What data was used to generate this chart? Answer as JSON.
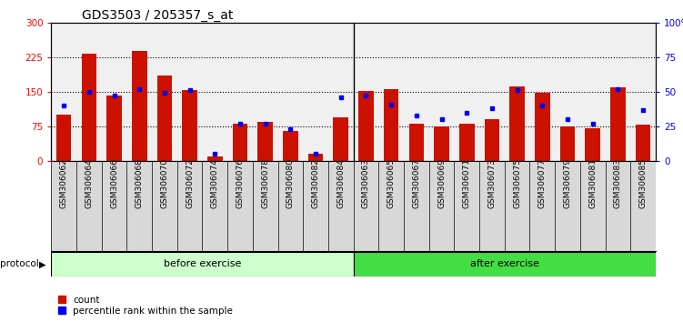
{
  "title": "GDS3503 / 205357_s_at",
  "samples_before": [
    "GSM306062",
    "GSM306064",
    "GSM306066",
    "GSM306068",
    "GSM306070",
    "GSM306072",
    "GSM306074",
    "GSM306076",
    "GSM306078",
    "GSM306080",
    "GSM306082",
    "GSM306084"
  ],
  "samples_after": [
    "GSM306063",
    "GSM306065",
    "GSM306067",
    "GSM306069",
    "GSM306071",
    "GSM306073",
    "GSM306075",
    "GSM306077",
    "GSM306079",
    "GSM306081",
    "GSM306083",
    "GSM306085"
  ],
  "counts_before": [
    100,
    232,
    142,
    238,
    185,
    154,
    10,
    80,
    85,
    65,
    15,
    95
  ],
  "counts_after": [
    152,
    155,
    80,
    75,
    80,
    90,
    162,
    148,
    75,
    70,
    160,
    78
  ],
  "pct_before": [
    40,
    50,
    47,
    52,
    49,
    51,
    5,
    27,
    27,
    23,
    5,
    46
  ],
  "pct_after": [
    47,
    41,
    33,
    30,
    35,
    38,
    51,
    40,
    30,
    27,
    52,
    37
  ],
  "ylim_left": [
    0,
    300
  ],
  "ylim_right": [
    0,
    100
  ],
  "yticks_left": [
    0,
    75,
    150,
    225,
    300
  ],
  "yticks_right": [
    0,
    25,
    50,
    75,
    100
  ],
  "bar_color": "#CC1100",
  "dot_color": "#0000EE",
  "before_bg": "#CCFFCC",
  "after_bg": "#44DD44",
  "protocol_label": "protocol",
  "before_label": "before exercise",
  "after_label": "after exercise",
  "legend_count": "count",
  "legend_pct": "percentile rank within the sample",
  "plot_bg": "#F0F0F0",
  "title_fontsize": 10,
  "bar_width": 0.6
}
